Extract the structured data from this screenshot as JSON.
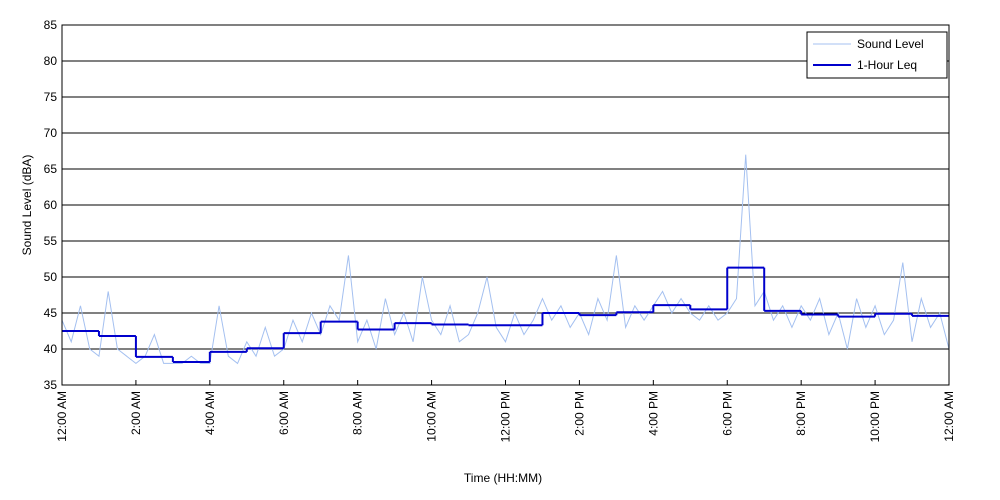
{
  "chart_data": {
    "type": "line",
    "xlabel": "Time (HH:MM)",
    "ylabel": "Sound Level (dBA)",
    "xlim": [
      0,
      24
    ],
    "ylim": [
      35,
      85
    ],
    "xticks": [
      {
        "value": 0,
        "label": "12:00 AM"
      },
      {
        "value": 2,
        "label": "2:00 AM"
      },
      {
        "value": 4,
        "label": "4:00 AM"
      },
      {
        "value": 6,
        "label": "6:00 AM"
      },
      {
        "value": 8,
        "label": "8:00 AM"
      },
      {
        "value": 10,
        "label": "10:00 AM"
      },
      {
        "value": 12,
        "label": "12:00 PM"
      },
      {
        "value": 14,
        "label": "2:00 PM"
      },
      {
        "value": 16,
        "label": "4:00 PM"
      },
      {
        "value": 18,
        "label": "6:00 PM"
      },
      {
        "value": 20,
        "label": "8:00 PM"
      },
      {
        "value": 22,
        "label": "10:00 PM"
      },
      {
        "value": 24,
        "label": "12:00 AM"
      }
    ],
    "yticks": [
      35,
      40,
      45,
      50,
      55,
      60,
      65,
      70,
      75,
      80,
      85
    ],
    "grid": true,
    "legend": "upper right",
    "series": [
      {
        "name": "Sound Level",
        "color": "#a4c0f0",
        "style": "line",
        "x": [
          0,
          0.25,
          0.5,
          0.75,
          1,
          1.25,
          1.5,
          1.75,
          2,
          2.25,
          2.5,
          2.75,
          3,
          3.25,
          3.5,
          3.75,
          4,
          4.25,
          4.5,
          4.75,
          5,
          5.25,
          5.5,
          5.75,
          6,
          6.25,
          6.5,
          6.75,
          7,
          7.25,
          7.5,
          7.75,
          8,
          8.25,
          8.5,
          8.75,
          9,
          9.25,
          9.5,
          9.75,
          10,
          10.25,
          10.5,
          10.75,
          11,
          11.25,
          11.5,
          11.75,
          12,
          12.25,
          12.5,
          12.75,
          13,
          13.25,
          13.5,
          13.75,
          14,
          14.25,
          14.5,
          14.75,
          15,
          15.25,
          15.5,
          15.75,
          16,
          16.25,
          16.5,
          16.75,
          17,
          17.25,
          17.5,
          17.75,
          18,
          18.25,
          18.5,
          18.75,
          19,
          19.25,
          19.5,
          19.75,
          20,
          20.25,
          20.5,
          20.75,
          21,
          21.25,
          21.5,
          21.75,
          22,
          22.25,
          22.5,
          22.75,
          23,
          23.25,
          23.5,
          23.75,
          24
        ],
        "values": [
          44,
          41,
          46,
          40,
          39,
          48,
          40,
          39,
          38,
          39,
          42,
          38,
          38,
          38,
          39,
          38,
          38,
          46,
          39,
          38,
          41,
          39,
          43,
          39,
          40,
          44,
          41,
          45,
          42,
          46,
          44,
          53,
          41,
          44,
          40,
          47,
          42,
          45,
          41,
          50,
          44,
          42,
          46,
          41,
          42,
          45,
          50,
          43,
          41,
          45,
          42,
          44,
          47,
          44,
          46,
          43,
          45,
          42,
          47,
          44,
          53,
          43,
          46,
          44,
          46,
          48,
          45,
          47,
          45,
          44,
          46,
          44,
          45,
          47,
          67,
          46,
          48,
          44,
          46,
          43,
          46,
          44,
          47,
          42,
          45,
          40,
          47,
          43,
          46,
          42,
          44,
          52,
          41,
          47,
          43,
          45,
          40
        ]
      },
      {
        "name": "1-Hour Leq",
        "color": "#0000cc",
        "style": "step",
        "x": [
          0,
          1,
          2,
          3,
          4,
          5,
          6,
          7,
          8,
          9,
          10,
          11,
          12,
          13,
          14,
          15,
          16,
          17,
          18,
          19,
          20,
          21,
          22,
          23
        ],
        "values": [
          42.5,
          41.8,
          38.9,
          38.2,
          39.6,
          40.1,
          42.2,
          43.8,
          42.7,
          43.6,
          43.4,
          43.3,
          43.3,
          45.0,
          44.7,
          45.1,
          46.1,
          45.5,
          51.3,
          45.3,
          44.8,
          44.5,
          44.9,
          44.6
        ]
      }
    ]
  }
}
